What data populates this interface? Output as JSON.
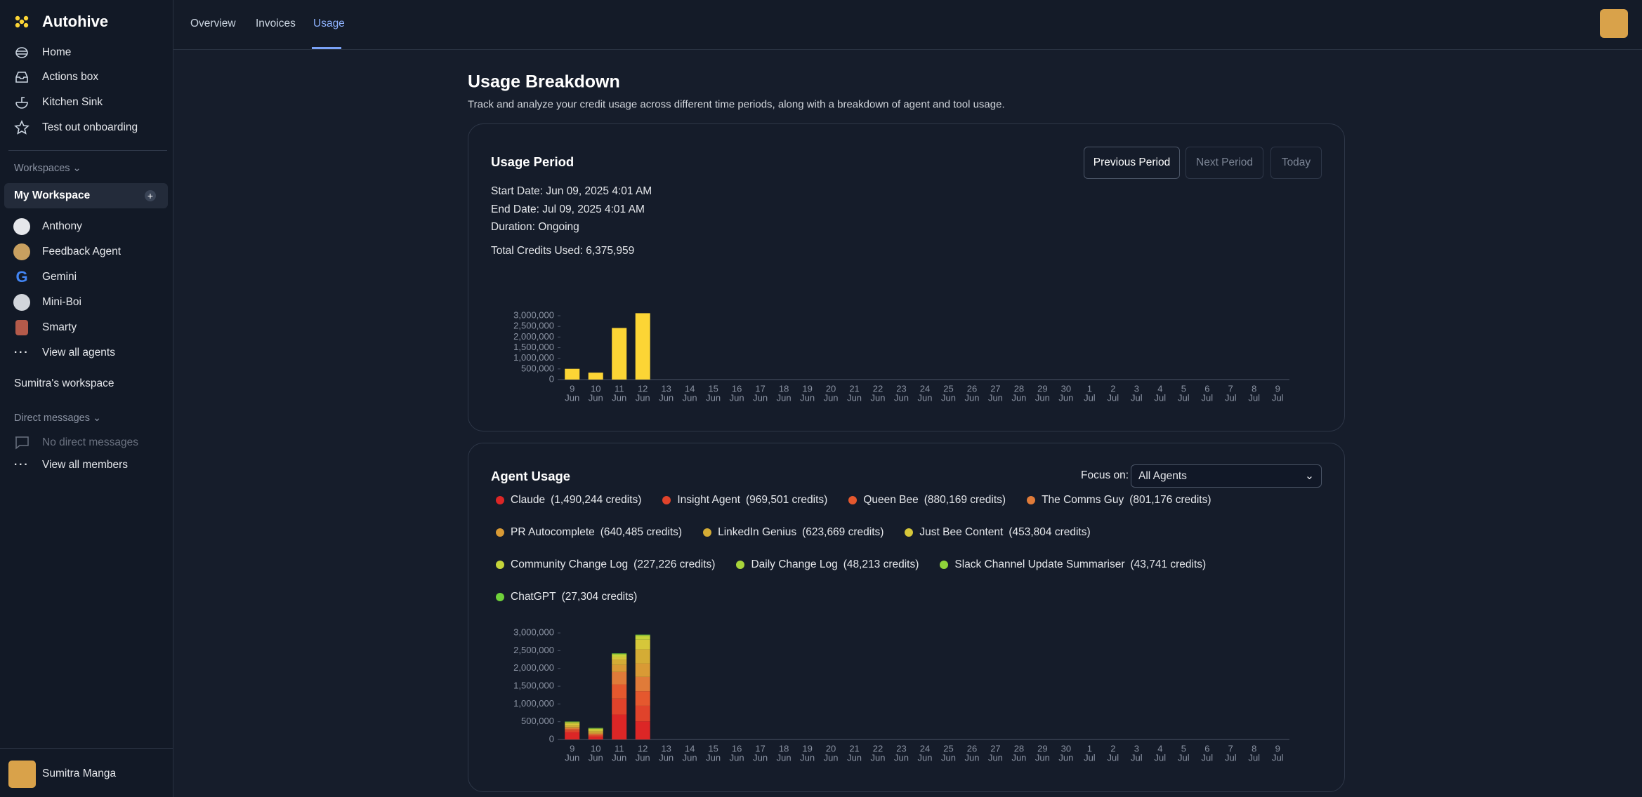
{
  "sidebar": {
    "brand": "Autohive",
    "nav": [
      "Home",
      "Actions box",
      "Kitchen Sink",
      "Test out onboarding"
    ],
    "workspaces_label": "Workspaces",
    "workspace_name": "My Workspace",
    "agents": [
      "Anthony",
      "Feedback Agent",
      "Gemini",
      "Mini-Boi",
      "Smarty"
    ],
    "view_all_agents": "View all agents",
    "other_workspace": "Sumitra's workspace",
    "direct_messages_label": "Direct messages",
    "no_direct_messages": "No direct messages",
    "view_all_members": "View all members",
    "user_name": "Sumitra Manga"
  },
  "header": {
    "tabs": [
      "Overview",
      "Invoices",
      "Usage"
    ]
  },
  "page": {
    "title": "Usage Breakdown",
    "subtitle": "Track and analyze your credit usage across different time periods, along with a breakdown of agent and tool usage."
  },
  "usage_period": {
    "heading": "Usage Period",
    "buttons": [
      "Previous Period",
      "Next Period",
      "Today"
    ],
    "start_date": "Start Date: Jun 09, 2025 4:01 AM",
    "end_date": "End Date: Jul 09, 2025 4:01 AM",
    "duration": "Duration: Ongoing",
    "total": "Total Credits Used: 6,375,959"
  },
  "agent_usage": {
    "heading": "Agent Usage",
    "focus_label": "Focus on:",
    "select": "All Agents"
  },
  "chart_data": [
    {
      "type": "bar",
      "color": "#fcd535",
      "categories": [
        [
          "9",
          "Jun"
        ],
        [
          "10",
          "Jun"
        ],
        [
          "11",
          "Jun"
        ],
        [
          "12",
          "Jun"
        ],
        [
          "13",
          "Jun"
        ],
        [
          "14",
          "Jun"
        ],
        [
          "15",
          "Jun"
        ],
        [
          "16",
          "Jun"
        ],
        [
          "17",
          "Jun"
        ],
        [
          "18",
          "Jun"
        ],
        [
          "19",
          "Jun"
        ],
        [
          "20",
          "Jun"
        ],
        [
          "21",
          "Jun"
        ],
        [
          "22",
          "Jun"
        ],
        [
          "23",
          "Jun"
        ],
        [
          "24",
          "Jun"
        ],
        [
          "25",
          "Jun"
        ],
        [
          "26",
          "Jun"
        ],
        [
          "27",
          "Jun"
        ],
        [
          "28",
          "Jun"
        ],
        [
          "29",
          "Jun"
        ],
        [
          "30",
          "Jun"
        ],
        [
          "1",
          "Jul"
        ],
        [
          "2",
          "Jul"
        ],
        [
          "3",
          "Jul"
        ],
        [
          "4",
          "Jul"
        ],
        [
          "5",
          "Jul"
        ],
        [
          "6",
          "Jul"
        ],
        [
          "7",
          "Jul"
        ],
        [
          "8",
          "Jul"
        ],
        [
          "9",
          "Jul"
        ]
      ],
      "values": [
        505000,
        325000,
        2425000,
        3120959,
        0,
        0,
        0,
        0,
        0,
        0,
        0,
        0,
        0,
        0,
        0,
        0,
        0,
        0,
        0,
        0,
        0,
        0,
        0,
        0,
        0,
        0,
        0,
        0,
        0,
        0,
        0
      ],
      "ylim": [
        0,
        3200000
      ],
      "yticks": [
        0,
        {
          "value": 500000,
          "label": "500,000"
        },
        {
          "value": 1000000,
          "label": "1,000,000"
        },
        {
          "value": 1500000,
          "label": "1,500,000"
        },
        {
          "value": 2000000,
          "label": "2,000,000"
        },
        {
          "value": 2500000,
          "label": "2,500,000"
        },
        {
          "value": 3000000,
          "label": "3,000,000"
        }
      ]
    },
    {
      "type": "stacked_bar",
      "categories": [
        [
          "9",
          "Jun"
        ],
        [
          "10",
          "Jun"
        ],
        [
          "11",
          "Jun"
        ],
        [
          "12",
          "Jun"
        ],
        [
          "13",
          "Jun"
        ],
        [
          "14",
          "Jun"
        ],
        [
          "15",
          "Jun"
        ],
        [
          "16",
          "Jun"
        ],
        [
          "17",
          "Jun"
        ],
        [
          "18",
          "Jun"
        ],
        [
          "19",
          "Jun"
        ],
        [
          "20",
          "Jun"
        ],
        [
          "21",
          "Jun"
        ],
        [
          "22",
          "Jun"
        ],
        [
          "23",
          "Jun"
        ],
        [
          "24",
          "Jun"
        ],
        [
          "25",
          "Jun"
        ],
        [
          "26",
          "Jun"
        ],
        [
          "27",
          "Jun"
        ],
        [
          "28",
          "Jun"
        ],
        [
          "29",
          "Jun"
        ],
        [
          "30",
          "Jun"
        ],
        [
          "1",
          "Jul"
        ],
        [
          "2",
          "Jul"
        ],
        [
          "3",
          "Jul"
        ],
        [
          "4",
          "Jul"
        ],
        [
          "5",
          "Jul"
        ],
        [
          "6",
          "Jul"
        ],
        [
          "7",
          "Jul"
        ],
        [
          "8",
          "Jul"
        ],
        [
          "9",
          "Jul"
        ]
      ],
      "series": [
        {
          "name": "Claude",
          "total_label": "(1,490,244 credits)",
          "color": "#dc2626",
          "values": [
            200000,
            80000,
            700000,
            510244,
            0,
            0,
            0,
            0,
            0,
            0,
            0,
            0,
            0,
            0,
            0,
            0,
            0,
            0,
            0,
            0,
            0,
            0,
            0,
            0,
            0,
            0,
            0,
            0,
            0,
            0,
            0
          ]
        },
        {
          "name": "Insight Agent",
          "total_label": "(969,501 credits)",
          "color": "#e0432b",
          "values": [
            50000,
            30000,
            450000,
            439501,
            0,
            0,
            0,
            0,
            0,
            0,
            0,
            0,
            0,
            0,
            0,
            0,
            0,
            0,
            0,
            0,
            0,
            0,
            0,
            0,
            0,
            0,
            0,
            0,
            0,
            0,
            0
          ]
        },
        {
          "name": "Queen Bee",
          "total_label": "(880,169 credits)",
          "color": "#e5582e",
          "values": [
            40000,
            30000,
            400000,
            410169,
            0,
            0,
            0,
            0,
            0,
            0,
            0,
            0,
            0,
            0,
            0,
            0,
            0,
            0,
            0,
            0,
            0,
            0,
            0,
            0,
            0,
            0,
            0,
            0,
            0,
            0,
            0
          ]
        },
        {
          "name": "The Comms Guy",
          "total_label": "(801,176 credits)",
          "color": "#e07b39",
          "values": [
            30000,
            20000,
            350000,
            401176,
            0,
            0,
            0,
            0,
            0,
            0,
            0,
            0,
            0,
            0,
            0,
            0,
            0,
            0,
            0,
            0,
            0,
            0,
            0,
            0,
            0,
            0,
            0,
            0,
            0,
            0,
            0
          ]
        },
        {
          "name": "PR Autocomplete",
          "total_label": "(640,485 credits)",
          "color": "#d99a35",
          "values": [
            30000,
            30000,
            200000,
            380485,
            0,
            0,
            0,
            0,
            0,
            0,
            0,
            0,
            0,
            0,
            0,
            0,
            0,
            0,
            0,
            0,
            0,
            0,
            0,
            0,
            0,
            0,
            0,
            0,
            0,
            0,
            0
          ]
        },
        {
          "name": "LinkedIn Genius",
          "total_label": "(623,669 credits)",
          "color": "#d4ac35",
          "values": [
            40000,
            40000,
            150000,
            393669,
            0,
            0,
            0,
            0,
            0,
            0,
            0,
            0,
            0,
            0,
            0,
            0,
            0,
            0,
            0,
            0,
            0,
            0,
            0,
            0,
            0,
            0,
            0,
            0,
            0,
            0,
            0
          ]
        },
        {
          "name": "Just Bee Content",
          "total_label": "(453,804 credits)",
          "color": "#d6c73a",
          "values": [
            60000,
            40000,
            80000,
            273804,
            0,
            0,
            0,
            0,
            0,
            0,
            0,
            0,
            0,
            0,
            0,
            0,
            0,
            0,
            0,
            0,
            0,
            0,
            0,
            0,
            0,
            0,
            0,
            0,
            0,
            0,
            0
          ]
        },
        {
          "name": "Community Change Log",
          "total_label": "(227,226 credits)",
          "color": "#c5d43a",
          "values": [
            30000,
            30000,
            60000,
            107226,
            0,
            0,
            0,
            0,
            0,
            0,
            0,
            0,
            0,
            0,
            0,
            0,
            0,
            0,
            0,
            0,
            0,
            0,
            0,
            0,
            0,
            0,
            0,
            0,
            0,
            0,
            0
          ]
        },
        {
          "name": "Daily Change Log",
          "total_label": "(48,213 credits)",
          "color": "#a8d43a",
          "values": [
            10000,
            10000,
            15000,
            13213,
            0,
            0,
            0,
            0,
            0,
            0,
            0,
            0,
            0,
            0,
            0,
            0,
            0,
            0,
            0,
            0,
            0,
            0,
            0,
            0,
            0,
            0,
            0,
            0,
            0,
            0,
            0
          ]
        },
        {
          "name": "Slack Channel Update Summariser",
          "total_label": "(43,741 credits)",
          "color": "#8fd43a",
          "values": [
            10000,
            10000,
            10000,
            13741,
            0,
            0,
            0,
            0,
            0,
            0,
            0,
            0,
            0,
            0,
            0,
            0,
            0,
            0,
            0,
            0,
            0,
            0,
            0,
            0,
            0,
            0,
            0,
            0,
            0,
            0,
            0
          ]
        },
        {
          "name": "ChatGPT",
          "total_label": "(27,304 credits)",
          "color": "#6fd13a",
          "values": [
            5000,
            5000,
            10000,
            7304,
            0,
            0,
            0,
            0,
            0,
            0,
            0,
            0,
            0,
            0,
            0,
            0,
            0,
            0,
            0,
            0,
            0,
            0,
            0,
            0,
            0,
            0,
            0,
            0,
            0,
            0,
            0
          ]
        }
      ],
      "ylim": [
        0,
        3200000
      ],
      "yticks": [
        0,
        {
          "value": 500000,
          "label": "500,000"
        },
        {
          "value": 1000000,
          "label": "1,000,000"
        },
        {
          "value": 1500000,
          "label": "1,500,000"
        },
        {
          "value": 2000000,
          "label": "2,000,000"
        },
        {
          "value": 2500000,
          "label": "2,500,000"
        },
        {
          "value": 3000000,
          "label": "3,000,000"
        }
      ]
    }
  ]
}
